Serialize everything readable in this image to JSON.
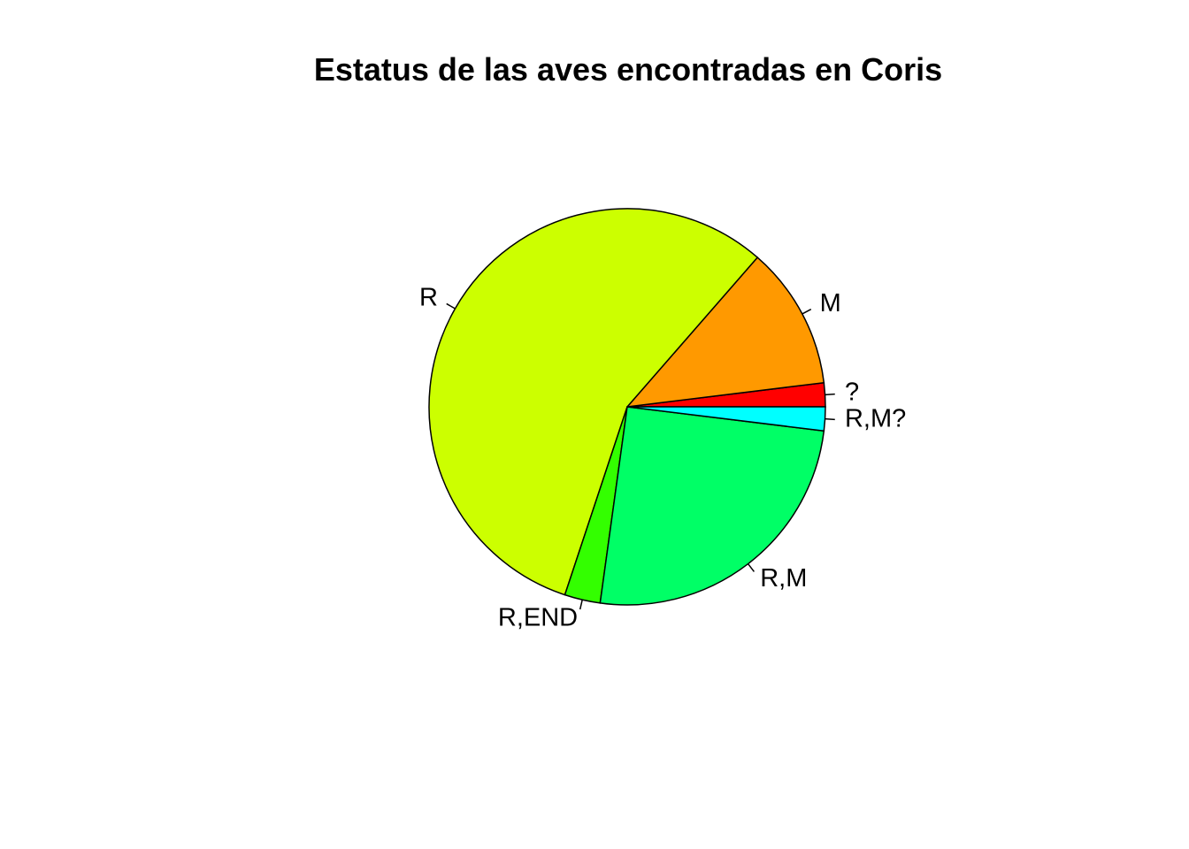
{
  "chart_data": {
    "type": "pie",
    "title": "Estatus de las aves encontradas en Coris",
    "direction": "counterclockwise",
    "start_angle_deg": 0,
    "slices": [
      {
        "label": "?",
        "value": 1,
        "color": "#FF0000"
      },
      {
        "label": "M",
        "value": 6,
        "color": "#FF9900"
      },
      {
        "label": "R",
        "value": 29,
        "color": "#CCFF00"
      },
      {
        "label": "R,END",
        "value": 1.5,
        "color": "#33FF00"
      },
      {
        "label": "R,M",
        "value": 13,
        "color": "#00FF66"
      },
      {
        "label": "R,M?",
        "value": 1,
        "color": "#00FFFF"
      }
    ]
  }
}
